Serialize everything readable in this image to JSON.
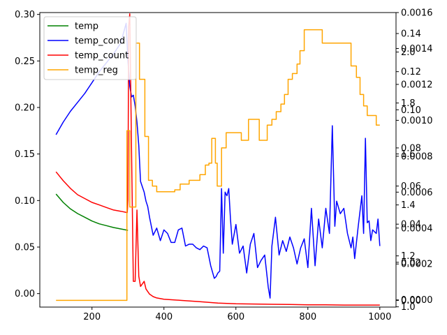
{
  "chart_data": {
    "type": "line",
    "title": "",
    "xlabel": "",
    "ylabel": "",
    "xlim": [
      55,
      1045
    ],
    "x_ticks": [
      200,
      400,
      600,
      800,
      1000
    ],
    "grid": false,
    "legend_position": "upper-left",
    "axes": {
      "left": {
        "ylim": [
          -0.0145,
          0.302
        ],
        "ticks": [
          0.0,
          0.05,
          0.1,
          0.15,
          0.2,
          0.25,
          0.3
        ],
        "decimals": 2,
        "position": "left"
      },
      "right1": {
        "ylim": [
          -4e-05,
          0.0016
        ],
        "ticks": [
          0.0,
          0.0002,
          0.0004,
          0.0006,
          0.0008,
          0.001,
          0.0012,
          0.0014,
          0.0016
        ],
        "decimals": 4,
        "position": "right"
      },
      "right2": {
        "ylim": [
          0.999,
          2.155
        ],
        "ticks": [
          1.0,
          1.2,
          1.4,
          1.6,
          1.8,
          2.0
        ],
        "decimals": 1,
        "position": "right"
      },
      "right3": {
        "ylim": [
          -0.0035,
          0.151
        ],
        "ticks": [
          0.0,
          0.02,
          0.04,
          0.06,
          0.08,
          0.1,
          0.12,
          0.14
        ],
        "decimals": 2,
        "position": "right"
      }
    },
    "series": [
      {
        "name": "temp",
        "color": "#008000",
        "axis": "left",
        "x": [
          100,
          120,
          140,
          160,
          180,
          200,
          220,
          240,
          260,
          280,
          300
        ],
        "y": [
          0.107,
          0.098,
          0.091,
          0.086,
          0.082,
          0.078,
          0.075,
          0.073,
          0.071,
          0.0695,
          0.068
        ]
      },
      {
        "name": "temp_cond",
        "color": "#0000ff",
        "axis": "right1",
        "x": [
          100,
          120,
          140,
          160,
          180,
          200,
          220,
          240,
          260,
          280,
          295,
          300,
          305,
          310,
          315,
          320,
          325,
          330,
          335,
          340,
          345,
          350,
          355,
          360,
          370,
          380,
          390,
          400,
          410,
          420,
          430,
          440,
          450,
          460,
          470,
          480,
          490,
          500,
          510,
          520,
          530,
          540,
          545,
          550,
          555,
          560,
          565,
          570,
          575,
          580,
          585,
          590,
          600,
          610,
          620,
          630,
          640,
          650,
          660,
          670,
          680,
          690,
          695,
          700,
          710,
          720,
          730,
          740,
          750,
          760,
          770,
          780,
          790,
          800,
          810,
          820,
          830,
          840,
          850,
          860,
          868,
          875,
          880,
          890,
          900,
          910,
          920,
          925,
          930,
          940,
          950,
          955,
          960,
          965,
          970,
          975,
          980,
          990,
          995,
          1000
        ],
        "y": [
          0.00092,
          0.00099,
          0.00105,
          0.0011,
          0.00115,
          0.00121,
          0.00127,
          0.00132,
          0.00137,
          0.00143,
          0.00154,
          0.00133,
          0.00119,
          0.00113,
          0.00114,
          0.00108,
          0.00099,
          0.00086,
          0.00066,
          0.00063,
          0.0006,
          0.00055,
          0.00052,
          0.00046,
          0.00036,
          0.0004,
          0.00033,
          0.00039,
          0.00037,
          0.00032,
          0.00032,
          0.00039,
          0.0004,
          0.0003,
          0.00031,
          0.00031,
          0.00029,
          0.00028,
          0.0003,
          0.00029,
          0.00019,
          0.00012,
          0.00013,
          0.00015,
          0.00016,
          0.00062,
          0.00026,
          0.0006,
          0.00058,
          0.00062,
          0.00045,
          0.00031,
          0.00042,
          0.00026,
          0.0003,
          0.00015,
          0.00031,
          0.00037,
          0.00018,
          0.00022,
          0.00025,
          7e-05,
          1e-05,
          0.0003,
          0.00046,
          0.00025,
          0.00033,
          0.00027,
          0.00035,
          0.00029,
          0.0002,
          0.00029,
          0.00034,
          0.00018,
          0.00051,
          0.00019,
          0.00045,
          0.00029,
          0.00051,
          0.00037,
          0.00097,
          0.00041,
          0.00055,
          0.00048,
          0.00051,
          0.00037,
          0.00029,
          0.00035,
          0.00023,
          0.00041,
          0.00058,
          0.00037,
          0.0009,
          0.00043,
          0.00044,
          0.00033,
          0.00039,
          0.00037,
          0.00045,
          0.0003
        ]
      },
      {
        "name": "temp_count",
        "color": "#ff0000",
        "axis": "right2",
        "x": [
          100,
          120,
          140,
          160,
          180,
          200,
          220,
          240,
          260,
          280,
          298,
          300,
          302,
          305,
          310,
          315,
          320,
          325,
          330,
          335,
          340,
          345,
          350,
          355,
          360,
          370,
          380,
          400,
          450,
          500,
          550,
          600,
          650,
          700,
          750,
          800,
          850,
          900,
          950,
          1000
        ],
        "y": [
          1.53,
          1.495,
          1.465,
          1.44,
          1.425,
          1.41,
          1.4,
          1.39,
          1.38,
          1.375,
          1.37,
          1.42,
          2.1,
          2.15,
          1.6,
          1.1,
          1.1,
          1.38,
          1.12,
          1.08,
          1.09,
          1.1,
          1.07,
          1.06,
          1.05,
          1.04,
          1.035,
          1.03,
          1.025,
          1.02,
          1.015,
          1.012,
          1.011,
          1.01,
          1.009,
          1.008,
          1.008,
          1.007,
          1.007,
          1.007
        ]
      },
      {
        "name": "temp_reg",
        "color": "#ffa500",
        "axis": "right3",
        "x": [
          100,
          297,
          297,
          305,
          305,
          322,
          322,
          332,
          332,
          347,
          347,
          357,
          357,
          368,
          368,
          380,
          380,
          430,
          430,
          445,
          445,
          470,
          470,
          500,
          500,
          515,
          515,
          525,
          525,
          533,
          533,
          543,
          543,
          548,
          548,
          560,
          560,
          573,
          573,
          578,
          578,
          615,
          615,
          635,
          635,
          665,
          665,
          687,
          687,
          700,
          700,
          712,
          712,
          725,
          725,
          735,
          735,
          745,
          745,
          757,
          757,
          770,
          770,
          778,
          778,
          790,
          790,
          840,
          840,
          920,
          920,
          935,
          935,
          945,
          945,
          955,
          955,
          965,
          965,
          990,
          990,
          1000
        ],
        "y": [
          0.0,
          0.0,
          0.089,
          0.089,
          0.049,
          0.049,
          0.135,
          0.135,
          0.116,
          0.116,
          0.086,
          0.086,
          0.063,
          0.063,
          0.06,
          0.06,
          0.057,
          0.057,
          0.058,
          0.058,
          0.061,
          0.061,
          0.063,
          0.063,
          0.066,
          0.066,
          0.071,
          0.071,
          0.072,
          0.072,
          0.085,
          0.085,
          0.072,
          0.072,
          0.06,
          0.06,
          0.08,
          0.08,
          0.088,
          0.088,
          0.088,
          0.088,
          0.084,
          0.084,
          0.095,
          0.095,
          0.084,
          0.084,
          0.092,
          0.092,
          0.095,
          0.095,
          0.099,
          0.099,
          0.103,
          0.103,
          0.108,
          0.108,
          0.116,
          0.116,
          0.119,
          0.119,
          0.124,
          0.124,
          0.131,
          0.131,
          0.142,
          0.142,
          0.135,
          0.135,
          0.123,
          0.123,
          0.117,
          0.117,
          0.108,
          0.108,
          0.102,
          0.102,
          0.097,
          0.097,
          0.092,
          0.092
        ]
      }
    ]
  }
}
